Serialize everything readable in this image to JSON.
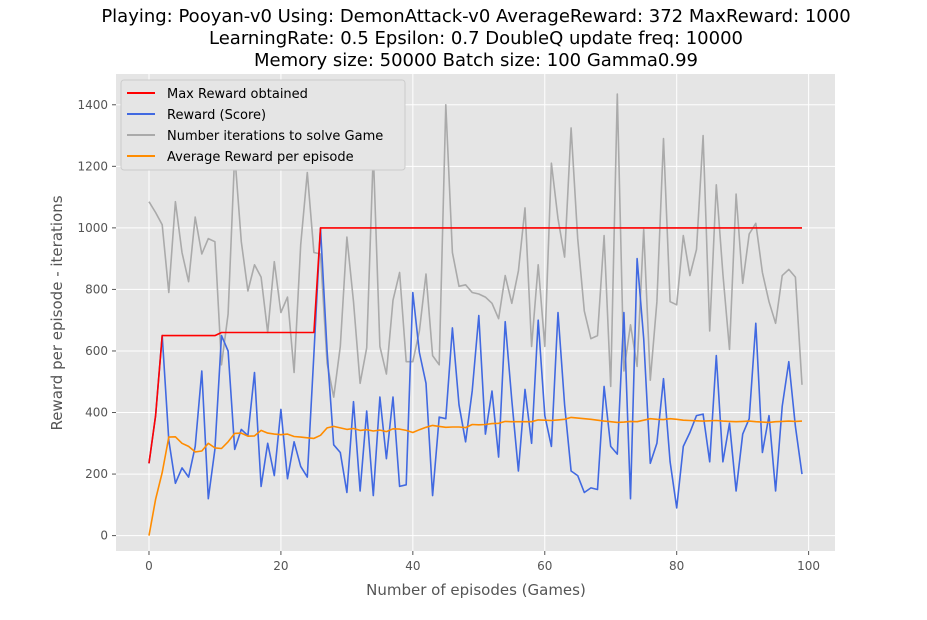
{
  "chart_data": {
    "type": "line",
    "title_lines": [
      "Playing: Pooyan-v0 Using: DemonAttack-v0 AverageReward: 372 MaxReward: 1000",
      "LearningRate: 0.5 Epsilon: 0.7 DoubleQ update freq: 10000",
      "Memory size: 50000 Batch size: 100 Gamma0.99"
    ],
    "xlabel": "Number of episodes (Games)",
    "ylabel": "Reward per episode - iterations",
    "xlim": [
      -5,
      104
    ],
    "ylim": [
      -50,
      1500
    ],
    "xticks": [
      0,
      20,
      40,
      60,
      80,
      100
    ],
    "yticks": [
      0,
      200,
      400,
      600,
      800,
      1000,
      1200,
      1400
    ],
    "grid": true,
    "legend_position": "top-left",
    "x": [
      0,
      1,
      2,
      3,
      4,
      5,
      6,
      7,
      8,
      9,
      10,
      11,
      12,
      13,
      14,
      15,
      16,
      17,
      18,
      19,
      20,
      21,
      22,
      23,
      24,
      25,
      26,
      27,
      28,
      29,
      30,
      31,
      32,
      33,
      34,
      35,
      36,
      37,
      38,
      39,
      40,
      41,
      42,
      43,
      44,
      45,
      46,
      47,
      48,
      49,
      50,
      51,
      52,
      53,
      54,
      55,
      56,
      57,
      58,
      59,
      60,
      61,
      62,
      63,
      64,
      65,
      66,
      67,
      68,
      69,
      70,
      71,
      72,
      73,
      74,
      75,
      76,
      77,
      78,
      79,
      80,
      81,
      82,
      83,
      84,
      85,
      86,
      87,
      88,
      89,
      90,
      91,
      92,
      93,
      94,
      95,
      96,
      97,
      98,
      99
    ],
    "series": [
      {
        "name": "Max Reward obtained",
        "color": "#ff0000",
        "values": [
          235,
          390,
          650,
          650,
          650,
          650,
          650,
          650,
          650,
          650,
          650,
          660,
          660,
          660,
          660,
          660,
          660,
          660,
          660,
          660,
          660,
          660,
          660,
          660,
          660,
          660,
          1000,
          1000,
          1000,
          1000,
          1000,
          1000,
          1000,
          1000,
          1000,
          1000,
          1000,
          1000,
          1000,
          1000,
          1000,
          1000,
          1000,
          1000,
          1000,
          1000,
          1000,
          1000,
          1000,
          1000,
          1000,
          1000,
          1000,
          1000,
          1000,
          1000,
          1000,
          1000,
          1000,
          1000,
          1000,
          1000,
          1000,
          1000,
          1000,
          1000,
          1000,
          1000,
          1000,
          1000,
          1000,
          1000,
          1000,
          1000,
          1000,
          1000,
          1000,
          1000,
          1000,
          1000,
          1000,
          1000,
          1000,
          1000,
          1000,
          1000,
          1000,
          1000,
          1000,
          1000,
          1000,
          1000,
          1000,
          1000,
          1000,
          1000,
          1000,
          1000,
          1000,
          1000
        ]
      },
      {
        "name": "Reward (Score)",
        "color": "#4169e1",
        "values": [
          235,
          390,
          650,
          310,
          170,
          220,
          190,
          290,
          535,
          120,
          280,
          650,
          600,
          280,
          345,
          325,
          530,
          160,
          300,
          195,
          410,
          185,
          305,
          225,
          190,
          590,
          1000,
          600,
          295,
          270,
          140,
          435,
          145,
          405,
          130,
          450,
          250,
          450,
          160,
          165,
          790,
          595,
          495,
          130,
          385,
          380,
          675,
          425,
          305,
          470,
          715,
          330,
          470,
          255,
          695,
          440,
          210,
          475,
          300,
          700,
          390,
          290,
          725,
          425,
          210,
          195,
          140,
          155,
          150,
          485,
          290,
          265,
          725,
          120,
          900,
          640,
          235,
          300,
          510,
          240,
          90,
          290,
          335,
          390,
          395,
          240,
          585,
          240,
          365,
          145,
          330,
          380,
          690,
          270,
          390,
          145,
          420,
          565,
          355,
          200
        ]
      },
      {
        "name": "Number iterations to solve Game",
        "color": "#aaaaaa",
        "values": [
          1085,
          1050,
          1010,
          790,
          1085,
          920,
          825,
          1035,
          915,
          965,
          955,
          555,
          720,
          1240,
          955,
          795,
          880,
          840,
          660,
          890,
          725,
          775,
          530,
          945,
          1180,
          920,
          915,
          560,
          450,
          615,
          970,
          760,
          495,
          610,
          1245,
          615,
          525,
          765,
          855,
          565,
          565,
          665,
          850,
          585,
          555,
          1400,
          920,
          810,
          815,
          790,
          785,
          775,
          755,
          705,
          845,
          755,
          860,
          1065,
          615,
          880,
          615,
          1210,
          1030,
          905,
          1325,
          965,
          730,
          640,
          650,
          975,
          485,
          1435,
          535,
          685,
          550,
          995,
          505,
          760,
          1290,
          760,
          750,
          975,
          845,
          930,
          1300,
          665,
          1140,
          850,
          605,
          1110,
          820,
          980,
          1015,
          855,
          760,
          690,
          845,
          865,
          840,
          490
        ]
      },
      {
        "name": "Average Reward per episode",
        "color": "#ff8c00",
        "values": [
          0,
          118,
          205,
          320,
          321,
          300,
          290,
          272,
          275,
          300,
          285,
          283,
          305,
          332,
          333,
          323,
          324,
          342,
          333,
          330,
          328,
          330,
          322,
          320,
          318,
          316,
          326,
          350,
          355,
          350,
          345,
          348,
          342,
          344,
          340,
          343,
          338,
          347,
          346,
          342,
          335,
          344,
          352,
          358,
          355,
          352,
          353,
          353,
          351,
          361,
          360,
          361,
          364,
          365,
          371,
          370,
          370,
          370,
          370,
          376,
          375,
          374,
          376,
          378,
          384,
          382,
          380,
          378,
          375,
          372,
          370,
          368,
          369,
          371,
          370,
          375,
          380,
          378,
          377,
          380,
          378,
          375,
          374,
          373,
          372,
          373,
          374,
          372,
          371,
          370,
          371,
          372,
          370,
          369,
          368,
          370,
          371,
          372,
          371,
          372
        ]
      }
    ]
  }
}
